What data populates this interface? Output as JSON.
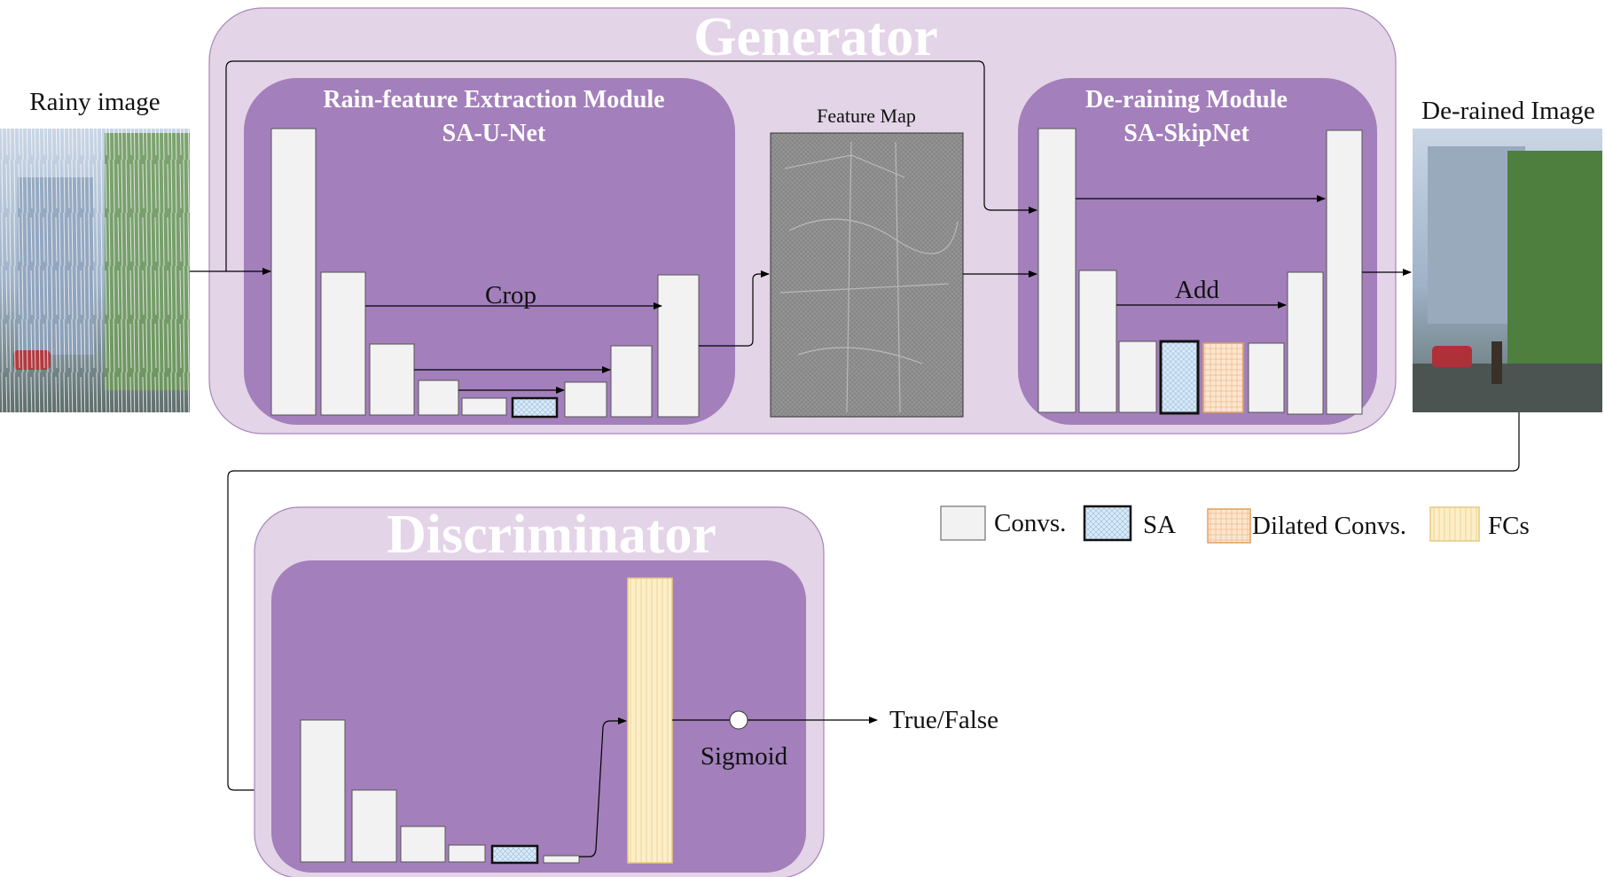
{
  "title": {
    "generator": "Generator",
    "discriminator": "Discriminator"
  },
  "generator": {
    "extraction": {
      "title_line1": "Rain-feature Extraction Module",
      "title_line2": "SA-U-Net",
      "skip_label": "Crop"
    },
    "feature_map_label": "Feature Map",
    "deraining": {
      "title_line1": "De-raining Module",
      "title_line2": "SA-SkipNet",
      "skip_label": "Add"
    }
  },
  "input_label": "Rainy image",
  "output_label": "De-rained Image",
  "discriminator": {
    "activation_label": "Sigmoid",
    "output_label": "True/False"
  },
  "legend": {
    "convs": "Convs.",
    "sa": "SA",
    "dilated": "Dilated Convs.",
    "fcs": "FCs"
  },
  "colors": {
    "outer_panel": "#e3d4e7",
    "outer_border": "#a686b8",
    "inner_panel": "#a37fbb",
    "conv_block": "#f2f2f2",
    "sa_fill": "#dbeaf6",
    "dilated_fill": "#fbe6d0",
    "dilated_border": "#e0a060",
    "fc_fill": "#fcefc8",
    "fc_border": "#e8c880"
  }
}
